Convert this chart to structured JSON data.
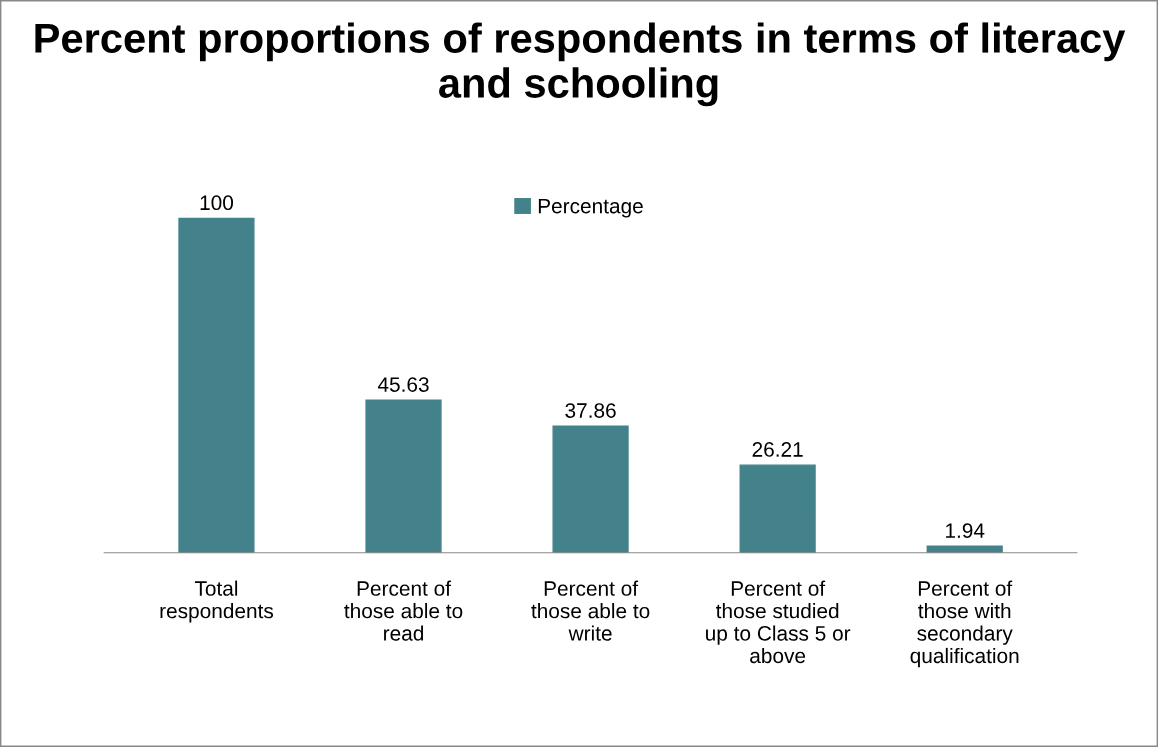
{
  "chart_data": {
    "type": "bar",
    "title": "Percent proportions of respondents in terms of literacy and schooling",
    "categories": [
      "Total\nrespondents",
      "Percent of\nthose able to\nread",
      "Percent of\nthose able to\nwrite",
      "Percent of\nthose studied\nup to Class 5 or\nabove",
      "Percent of\nthose with\nsecondary\nqualification"
    ],
    "series": [
      {
        "name": "Percentage",
        "color": "#43828a",
        "values": [
          100,
          45.63,
          37.86,
          26.21,
          1.94
        ]
      }
    ],
    "data_labels": true,
    "legend": "top",
    "grid": false
  }
}
